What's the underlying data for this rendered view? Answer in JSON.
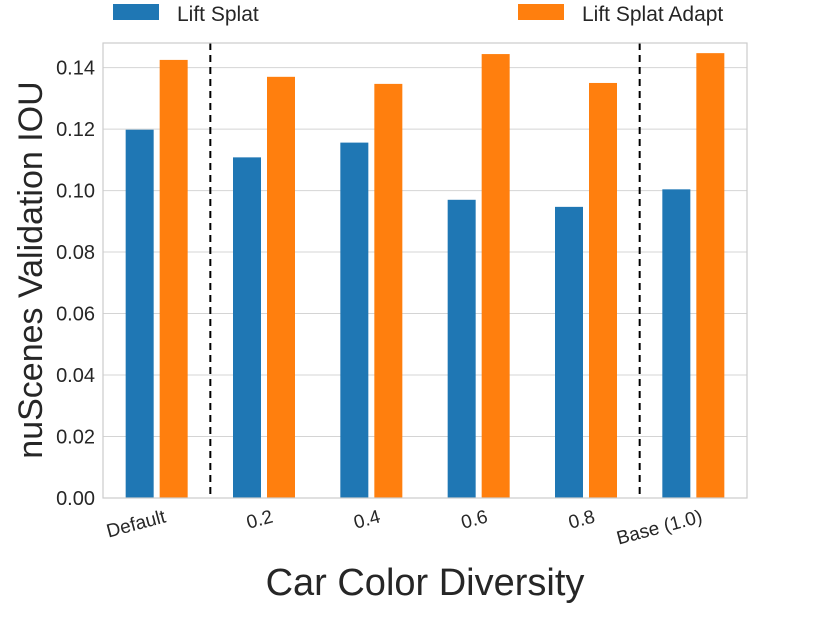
{
  "chart_data": {
    "type": "bar",
    "title": "",
    "xlabel": "Car Color Diversity",
    "ylabel": "nuScenes Validation IOU",
    "categories": [
      "Default",
      "0.2",
      "0.4",
      "0.6",
      "0.8",
      "Base (1.0)"
    ],
    "series": [
      {
        "name": "Lift Splat",
        "color": "#1f77b4",
        "values": [
          0.1198,
          0.1108,
          0.1156,
          0.097,
          0.0947,
          0.1004
        ]
      },
      {
        "name": "Lift Splat Adapt",
        "color": "#ff7f0e",
        "values": [
          0.1425,
          0.137,
          0.1347,
          0.1444,
          0.135,
          0.1447
        ]
      }
    ],
    "ylim": [
      0,
      0.148
    ],
    "yticks": [
      "0.00",
      "0.02",
      "0.04",
      "0.06",
      "0.08",
      "0.10",
      "0.12",
      "0.14"
    ],
    "ytick_values": [
      0,
      0.02,
      0.04,
      0.06,
      0.08,
      0.1,
      0.12,
      0.14
    ],
    "separators_after_category": [
      0,
      4
    ],
    "grid": true,
    "legend_position": "top"
  }
}
